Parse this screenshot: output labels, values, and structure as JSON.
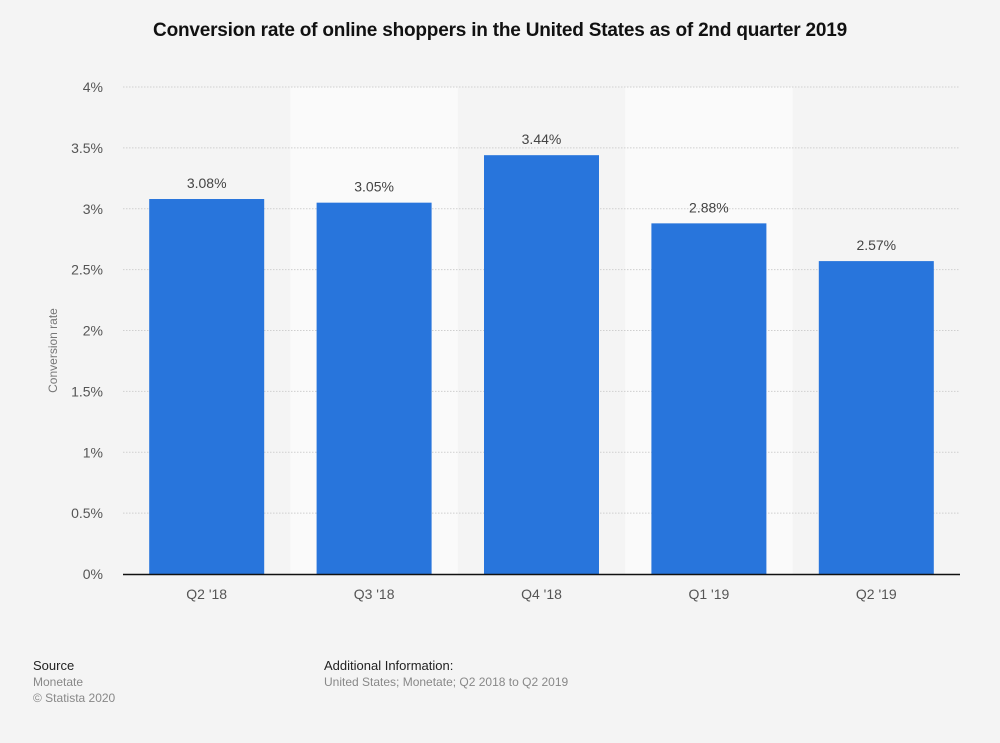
{
  "chart_data": {
    "type": "bar",
    "title": "Conversion rate of online shoppers in the United States as of 2nd quarter 2019",
    "xlabel": "",
    "ylabel": "Conversion rate",
    "categories": [
      "Q2 '18",
      "Q3 '18",
      "Q4 '18",
      "Q1 '19",
      "Q2 '19"
    ],
    "values": [
      3.08,
      3.05,
      3.44,
      2.88,
      2.57
    ],
    "value_labels": [
      "3.08%",
      "3.05%",
      "3.44%",
      "2.88%",
      "2.57%"
    ],
    "ylim": [
      0,
      4
    ],
    "yticks": [
      0,
      0.5,
      1,
      1.5,
      2,
      2.5,
      3,
      3.5,
      4
    ],
    "ytick_labels": [
      "0%",
      "0.5%",
      "1%",
      "1.5%",
      "2%",
      "2.5%",
      "3%",
      "3.5%",
      "4%"
    ],
    "grid": true,
    "legend": "none",
    "bar_color": "#2875dc"
  },
  "footer": {
    "source_heading": "Source",
    "source_name": "Monetate",
    "copyright": "© Statista 2020",
    "additional_heading": "Additional Information:",
    "additional_text": "United States; Monetate; Q2 2018 to Q2 2019"
  }
}
